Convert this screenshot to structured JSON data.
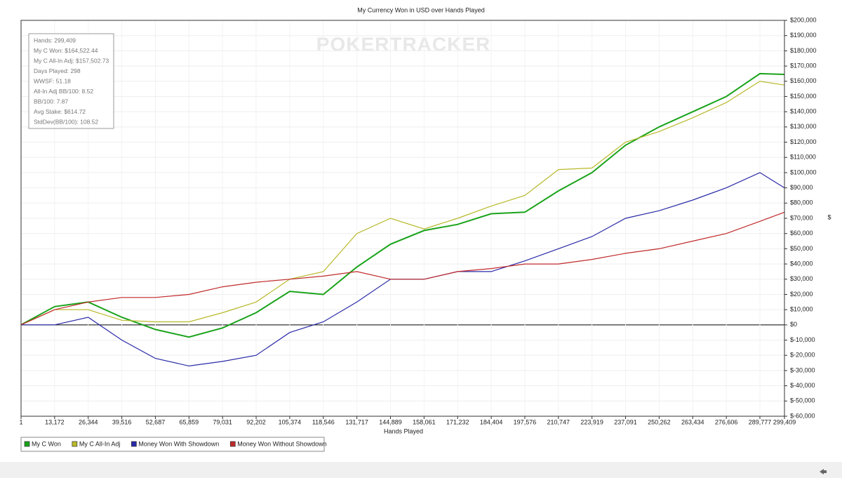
{
  "chart_data": {
    "type": "line",
    "title": "My Currency Won in USD over Hands Played",
    "x_label": "Hands Played",
    "y_label": "$",
    "watermark": "POKERTRACKER",
    "annotations": [
      "Hands: 299,409",
      "My C Won: $164,522.44",
      "My C All-In Adj: $157,502.73",
      "Days Played: 298",
      "WWSF: 51.18",
      "All-In Adj BB/100: 8.52",
      "BB/100: 7.87",
      "Avg Stake: $614.72",
      "StdDev(BB/100): 108.52"
    ],
    "x": [
      1,
      13172,
      26344,
      39516,
      52687,
      65859,
      79031,
      92202,
      105374,
      118546,
      131717,
      144889,
      158061,
      171232,
      184404,
      197576,
      210747,
      223919,
      237091,
      250262,
      263434,
      276606,
      289777,
      299409
    ],
    "series": [
      {
        "name": "My C Won",
        "color": "#1aa31a",
        "values": [
          0,
          12000,
          15000,
          5000,
          -3000,
          -8000,
          -2000,
          8000,
          22000,
          20000,
          38000,
          53000,
          62000,
          66000,
          73000,
          74000,
          88000,
          100000,
          118000,
          130000,
          140000,
          150000,
          165000,
          164522
        ]
      },
      {
        "name": "My C All-In Adj",
        "color": "#b8b82a",
        "values": [
          0,
          10000,
          10000,
          3000,
          2000,
          2000,
          8000,
          15000,
          30000,
          35000,
          60000,
          70000,
          63000,
          70000,
          78000,
          85000,
          102000,
          103000,
          120000,
          127000,
          136000,
          146000,
          160000,
          157503
        ]
      },
      {
        "name": "Money Won With Showdown",
        "color": "#2a2aa8",
        "values": [
          0,
          0,
          5000,
          -10000,
          -22000,
          -27000,
          -24000,
          -20000,
          -5000,
          2000,
          15000,
          30000,
          30000,
          35000,
          35000,
          42000,
          50000,
          58000,
          70000,
          75000,
          82000,
          90000,
          100000,
          90000
        ]
      },
      {
        "name": "Money Won Without Showdown",
        "color": "#c02a2a",
        "values": [
          0,
          10000,
          15000,
          18000,
          18000,
          20000,
          25000,
          28000,
          30000,
          32000,
          35000,
          30000,
          30000,
          35000,
          37000,
          40000,
          40000,
          43000,
          47000,
          50000,
          55000,
          60000,
          68000,
          74000
        ]
      }
    ],
    "xlim": [
      1,
      299409
    ],
    "xticks": [
      1,
      {
        "value": 13172,
        "label": "13,172"
      },
      {
        "value": 26344,
        "label": "26,344"
      },
      {
        "value": 39516,
        "label": "39,516"
      },
      {
        "value": 52687,
        "label": "52,687"
      },
      {
        "value": 65859,
        "label": "65,859"
      },
      {
        "value": 79031,
        "label": "79,031"
      },
      {
        "value": 92202,
        "label": "92,202"
      },
      {
        "value": 105374,
        "label": "105,374"
      },
      {
        "value": 118546,
        "label": "118,546"
      },
      {
        "value": 131717,
        "label": "131,717"
      },
      {
        "value": 144889,
        "label": "144,889"
      },
      {
        "value": 158061,
        "label": "158,061"
      },
      {
        "value": 171232,
        "label": "171,232"
      },
      {
        "value": 184404,
        "label": "184,404"
      },
      {
        "value": 197576,
        "label": "197,576"
      },
      {
        "value": 210747,
        "label": "210,747"
      },
      {
        "value": 223919,
        "label": "223,919"
      },
      {
        "value": 237091,
        "label": "237,091"
      },
      {
        "value": 250262,
        "label": "250,262"
      },
      {
        "value": 263434,
        "label": "263,434"
      },
      {
        "value": 276606,
        "label": "276,606"
      },
      {
        "value": 289777,
        "label": "289,777"
      },
      {
        "value": 299409,
        "label": "299,409"
      }
    ],
    "ylim": [
      -60000,
      200000
    ],
    "yticks": [
      {
        "value": -60000,
        "label": "$-60,000"
      },
      {
        "value": -50000,
        "label": "$-50,000"
      },
      {
        "value": -40000,
        "label": "$-40,000"
      },
      {
        "value": -30000,
        "label": "$-30,000"
      },
      {
        "value": -20000,
        "label": "$-20,000"
      },
      {
        "value": -10000,
        "label": "$-10,000"
      },
      {
        "value": 0,
        "label": "$0"
      },
      {
        "value": 10000,
        "label": "$10,000"
      },
      {
        "value": 20000,
        "label": "$20,000"
      },
      {
        "value": 30000,
        "label": "$30,000"
      },
      {
        "value": 40000,
        "label": "$40,000"
      },
      {
        "value": 50000,
        "label": "$50,000"
      },
      {
        "value": 60000,
        "label": "$60,000"
      },
      {
        "value": 70000,
        "label": "$70,000"
      },
      {
        "value": 80000,
        "label": "$80,000"
      },
      {
        "value": 90000,
        "label": "$90,000"
      },
      {
        "value": 100000,
        "label": "$100,000"
      },
      {
        "value": 110000,
        "label": "$110,000"
      },
      {
        "value": 120000,
        "label": "$120,000"
      },
      {
        "value": 130000,
        "label": "$130,000"
      },
      {
        "value": 140000,
        "label": "$140,000"
      },
      {
        "value": 150000,
        "label": "$150,000"
      },
      {
        "value": 160000,
        "label": "$160,000"
      },
      {
        "value": 170000,
        "label": "$170,000"
      },
      {
        "value": 180000,
        "label": "$180,000"
      },
      {
        "value": 190000,
        "label": "$190,000"
      },
      {
        "value": 200000,
        "label": "$200,000"
      }
    ],
    "grid": true,
    "legend": "bottom-left"
  }
}
